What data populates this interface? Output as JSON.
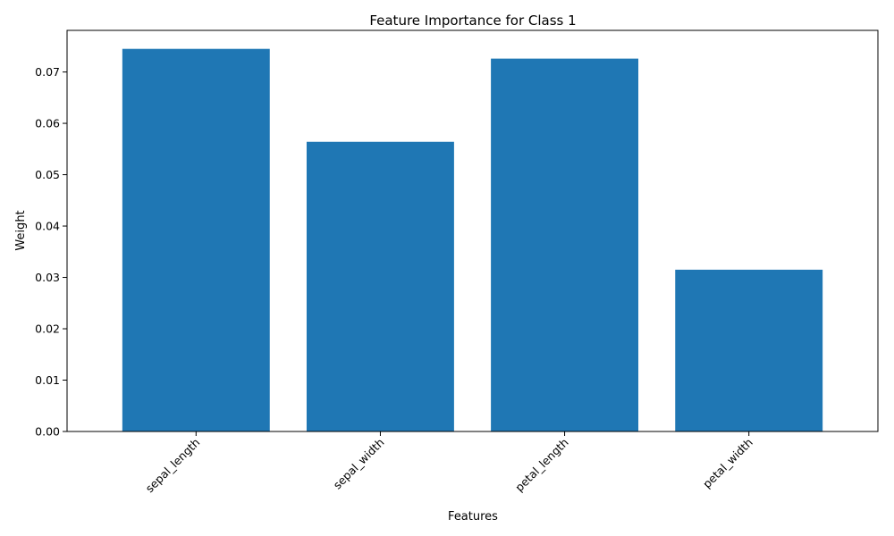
{
  "chart_data": {
    "type": "bar",
    "title": "Feature Importance for Class 1",
    "xlabel": "Features",
    "ylabel": "Weight",
    "categories": [
      "sepal_length",
      "sepal_width",
      "petal_length",
      "petal_width"
    ],
    "values": [
      0.0745,
      0.0564,
      0.0726,
      0.0315
    ],
    "ylim": [
      0,
      0.0781
    ],
    "yticks": [
      "0.00",
      "0.01",
      "0.02",
      "0.03",
      "0.04",
      "0.05",
      "0.06",
      "0.07"
    ],
    "x_tick_rotation_deg": 45,
    "bar_color": "#1f77b4",
    "grid": false,
    "legend": "none"
  }
}
